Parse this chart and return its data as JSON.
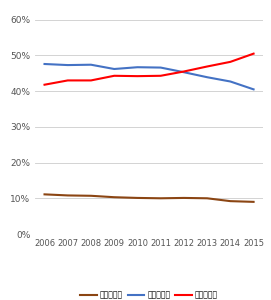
{
  "years": [
    2006,
    2007,
    2008,
    2009,
    2010,
    2011,
    2012,
    2013,
    2014,
    2015
  ],
  "primary": [
    11.1,
    10.8,
    10.7,
    10.3,
    10.1,
    10.0,
    10.1,
    10.0,
    9.2,
    9.0
  ],
  "secondary": [
    47.6,
    47.3,
    47.4,
    46.2,
    46.7,
    46.6,
    45.3,
    43.9,
    42.7,
    40.5
  ],
  "tertiary": [
    41.8,
    43.0,
    43.0,
    44.3,
    44.2,
    44.3,
    45.5,
    46.9,
    48.2,
    50.5
  ],
  "primary_color": "#8B4513",
  "secondary_color": "#4472C4",
  "tertiary_color": "#FF0000",
  "primary_label": "第一次産業",
  "secondary_label": "第二次産業",
  "tertiary_label": "第三次産業",
  "ylim": [
    0,
    63
  ],
  "yticks": [
    0,
    10,
    20,
    30,
    40,
    50,
    60
  ],
  "ytick_labels": [
    "0%",
    "10%",
    "20%",
    "30%",
    "40%",
    "50%",
    "60%"
  ],
  "bg_color": "#FFFFFF",
  "grid_color": "#CCCCCC",
  "line_width": 1.5,
  "xlim_left": 2005.6,
  "xlim_right": 2015.4
}
